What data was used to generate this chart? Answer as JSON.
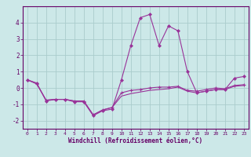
{
  "title": "",
  "xlabel": "Windchill (Refroidissement éolien,°C)",
  "ylabel": "",
  "background_color": "#cce8e8",
  "line_color": "#993399",
  "grid_color": "#aacccc",
  "x_values": [
    0,
    1,
    2,
    3,
    4,
    5,
    6,
    7,
    8,
    9,
    10,
    11,
    12,
    13,
    14,
    15,
    16,
    17,
    18,
    19,
    20,
    21,
    22,
    23
  ],
  "series1": [
    0.5,
    0.3,
    -0.8,
    -0.7,
    -0.7,
    -0.85,
    -0.85,
    -1.7,
    -1.4,
    -1.3,
    0.5,
    2.6,
    4.3,
    4.5,
    2.6,
    3.8,
    3.5,
    1.0,
    -0.3,
    -0.2,
    -0.1,
    -0.1,
    0.6,
    0.7
  ],
  "series2": [
    0.5,
    0.25,
    -0.75,
    -0.7,
    -0.7,
    -0.8,
    -0.8,
    -1.65,
    -1.35,
    -1.2,
    -0.3,
    -0.15,
    -0.1,
    0.0,
    0.05,
    0.05,
    0.1,
    -0.15,
    -0.2,
    -0.1,
    0.0,
    -0.05,
    0.15,
    0.2
  ],
  "series3": [
    0.5,
    0.25,
    -0.75,
    -0.7,
    -0.7,
    -0.8,
    -0.8,
    -1.65,
    -1.35,
    -1.2,
    -0.5,
    -0.35,
    -0.25,
    -0.15,
    -0.1,
    -0.05,
    0.05,
    -0.2,
    -0.3,
    -0.2,
    -0.1,
    -0.1,
    0.1,
    0.15
  ],
  "ylim": [
    -2.5,
    5.0
  ],
  "yticks": [
    -2,
    -1,
    0,
    1,
    2,
    3,
    4
  ],
  "xlim": [
    -0.5,
    23.5
  ]
}
